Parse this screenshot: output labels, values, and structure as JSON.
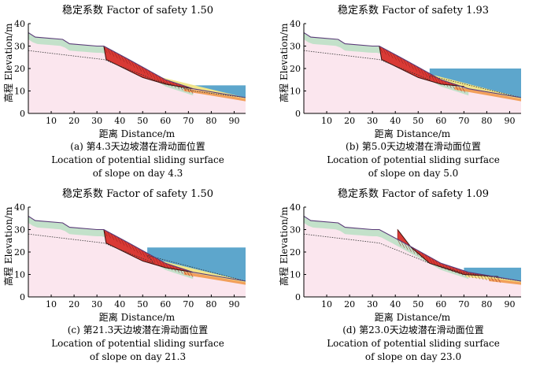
{
  "chart_data": [
    {
      "type": "area",
      "id": "a",
      "title": "稳定系数 Factor of safety 1.50",
      "xlabel": "距离 Distance/m",
      "ylabel": "高程 Elevation/m",
      "caption": [
        "(a) 第4.3天边坡潜在滑动面位置",
        "Location of potential sliding surface",
        "of slope on day 4.3"
      ],
      "xlim": [
        0,
        95
      ],
      "ylim": [
        0,
        40
      ],
      "xticks": [
        "10",
        "20",
        "30",
        "40",
        "50",
        "60",
        "70",
        "80",
        "90"
      ],
      "yticks": [
        "0",
        "10",
        "20",
        "30",
        "40"
      ],
      "ground_surface": [
        [
          0,
          36
        ],
        [
          3,
          34
        ],
        [
          15,
          33
        ],
        [
          18,
          31
        ],
        [
          30,
          30
        ],
        [
          33,
          30
        ],
        [
          44,
          24
        ],
        [
          60,
          15
        ],
        [
          72,
          11
        ],
        [
          95,
          7
        ]
      ],
      "water_level": 12.5,
      "water_x_start": 72,
      "slide_surface": [
        [
          33,
          30
        ],
        [
          34,
          24
        ],
        [
          50,
          16
        ],
        [
          60,
          13
        ],
        [
          72,
          11
        ]
      ],
      "factor_of_safety": 1.5,
      "day": 4.3
    },
    {
      "type": "area",
      "id": "b",
      "title": "稳定系数 Factor of safety 1.93",
      "xlabel": "距离 Distance/m",
      "ylabel": "高程 Elevation/m",
      "caption": [
        "(b) 第5.0天边坡潜在滑动面位置",
        "Location of potential sliding surface",
        "of slope on day 5.0"
      ],
      "xlim": [
        0,
        95
      ],
      "ylim": [
        0,
        40
      ],
      "xticks": [
        "10",
        "20",
        "30",
        "40",
        "50",
        "60",
        "70",
        "80",
        "90"
      ],
      "yticks": [
        "0",
        "10",
        "20",
        "30",
        "40"
      ],
      "ground_surface": [
        [
          0,
          36
        ],
        [
          3,
          34
        ],
        [
          15,
          33
        ],
        [
          18,
          31
        ],
        [
          30,
          30
        ],
        [
          33,
          30
        ],
        [
          44,
          24
        ],
        [
          60,
          15
        ],
        [
          72,
          11
        ],
        [
          95,
          7
        ]
      ],
      "water_level": 20,
      "water_x_start": 55,
      "slide_surface": [
        [
          33,
          30
        ],
        [
          34,
          24
        ],
        [
          50,
          16
        ],
        [
          60,
          13
        ],
        [
          70,
          12
        ]
      ],
      "factor_of_safety": 1.93,
      "day": 5.0
    },
    {
      "type": "area",
      "id": "c",
      "title": "稳定系数 Factor of safety 1.50",
      "xlabel": "距离 Distance/m",
      "ylabel": "高程 Elevation/m",
      "caption": [
        "(c) 第21.3天边坡潜在滑动面位置",
        "Location of potential sliding surface",
        "of slope on day 21.3"
      ],
      "xlim": [
        0,
        95
      ],
      "ylim": [
        0,
        40
      ],
      "xticks": [
        "10",
        "20",
        "30",
        "40",
        "50",
        "60",
        "70",
        "80",
        "90"
      ],
      "yticks": [
        "0",
        "10",
        "20",
        "30",
        "40"
      ],
      "ground_surface": [
        [
          0,
          36
        ],
        [
          3,
          34
        ],
        [
          15,
          33
        ],
        [
          18,
          31
        ],
        [
          30,
          30
        ],
        [
          33,
          30
        ],
        [
          44,
          24
        ],
        [
          60,
          15
        ],
        [
          72,
          11
        ],
        [
          95,
          7
        ]
      ],
      "water_level": 22,
      "water_x_start": 52,
      "slide_surface": [
        [
          33,
          30
        ],
        [
          34,
          24
        ],
        [
          50,
          16
        ],
        [
          60,
          13
        ],
        [
          72,
          11
        ]
      ],
      "factor_of_safety": 1.5,
      "day": 21.3
    },
    {
      "type": "area",
      "id": "d",
      "title": "稳定系数 Factor of safety 1.09",
      "xlabel": "距离 Distance/m",
      "ylabel": "高程 Elevation/m",
      "caption": [
        "(d) 第23.0天边坡潜在滑动面位置",
        "Location of potential sliding surface",
        "of slope on day 23.0"
      ],
      "xlim": [
        0,
        95
      ],
      "ylim": [
        0,
        40
      ],
      "xticks": [
        "10",
        "20",
        "30",
        "40",
        "50",
        "60",
        "70",
        "80",
        "90"
      ],
      "yticks": [
        "0",
        "10",
        "20",
        "30",
        "40"
      ],
      "ground_surface": [
        [
          0,
          36
        ],
        [
          3,
          34
        ],
        [
          15,
          33
        ],
        [
          18,
          31
        ],
        [
          30,
          30
        ],
        [
          33,
          30
        ],
        [
          44,
          24
        ],
        [
          60,
          15
        ],
        [
          72,
          11
        ],
        [
          95,
          7
        ]
      ],
      "water_level": 13,
      "water_x_start": 70,
      "slide_surface": [
        [
          41,
          30
        ],
        [
          47,
          22
        ],
        [
          55,
          15
        ],
        [
          70,
          10
        ],
        [
          85,
          9
        ]
      ],
      "factor_of_safety": 1.09,
      "day": 23.0
    }
  ],
  "colors": {
    "ground": "#fbe6ee",
    "water": "#5da6cc",
    "slide": "#d93a35",
    "upper_layer": "#b9dfc3",
    "seepage_yellow": "#f1e58a",
    "seepage_orange": "#f2a05b",
    "outline": "#5a3a78"
  }
}
